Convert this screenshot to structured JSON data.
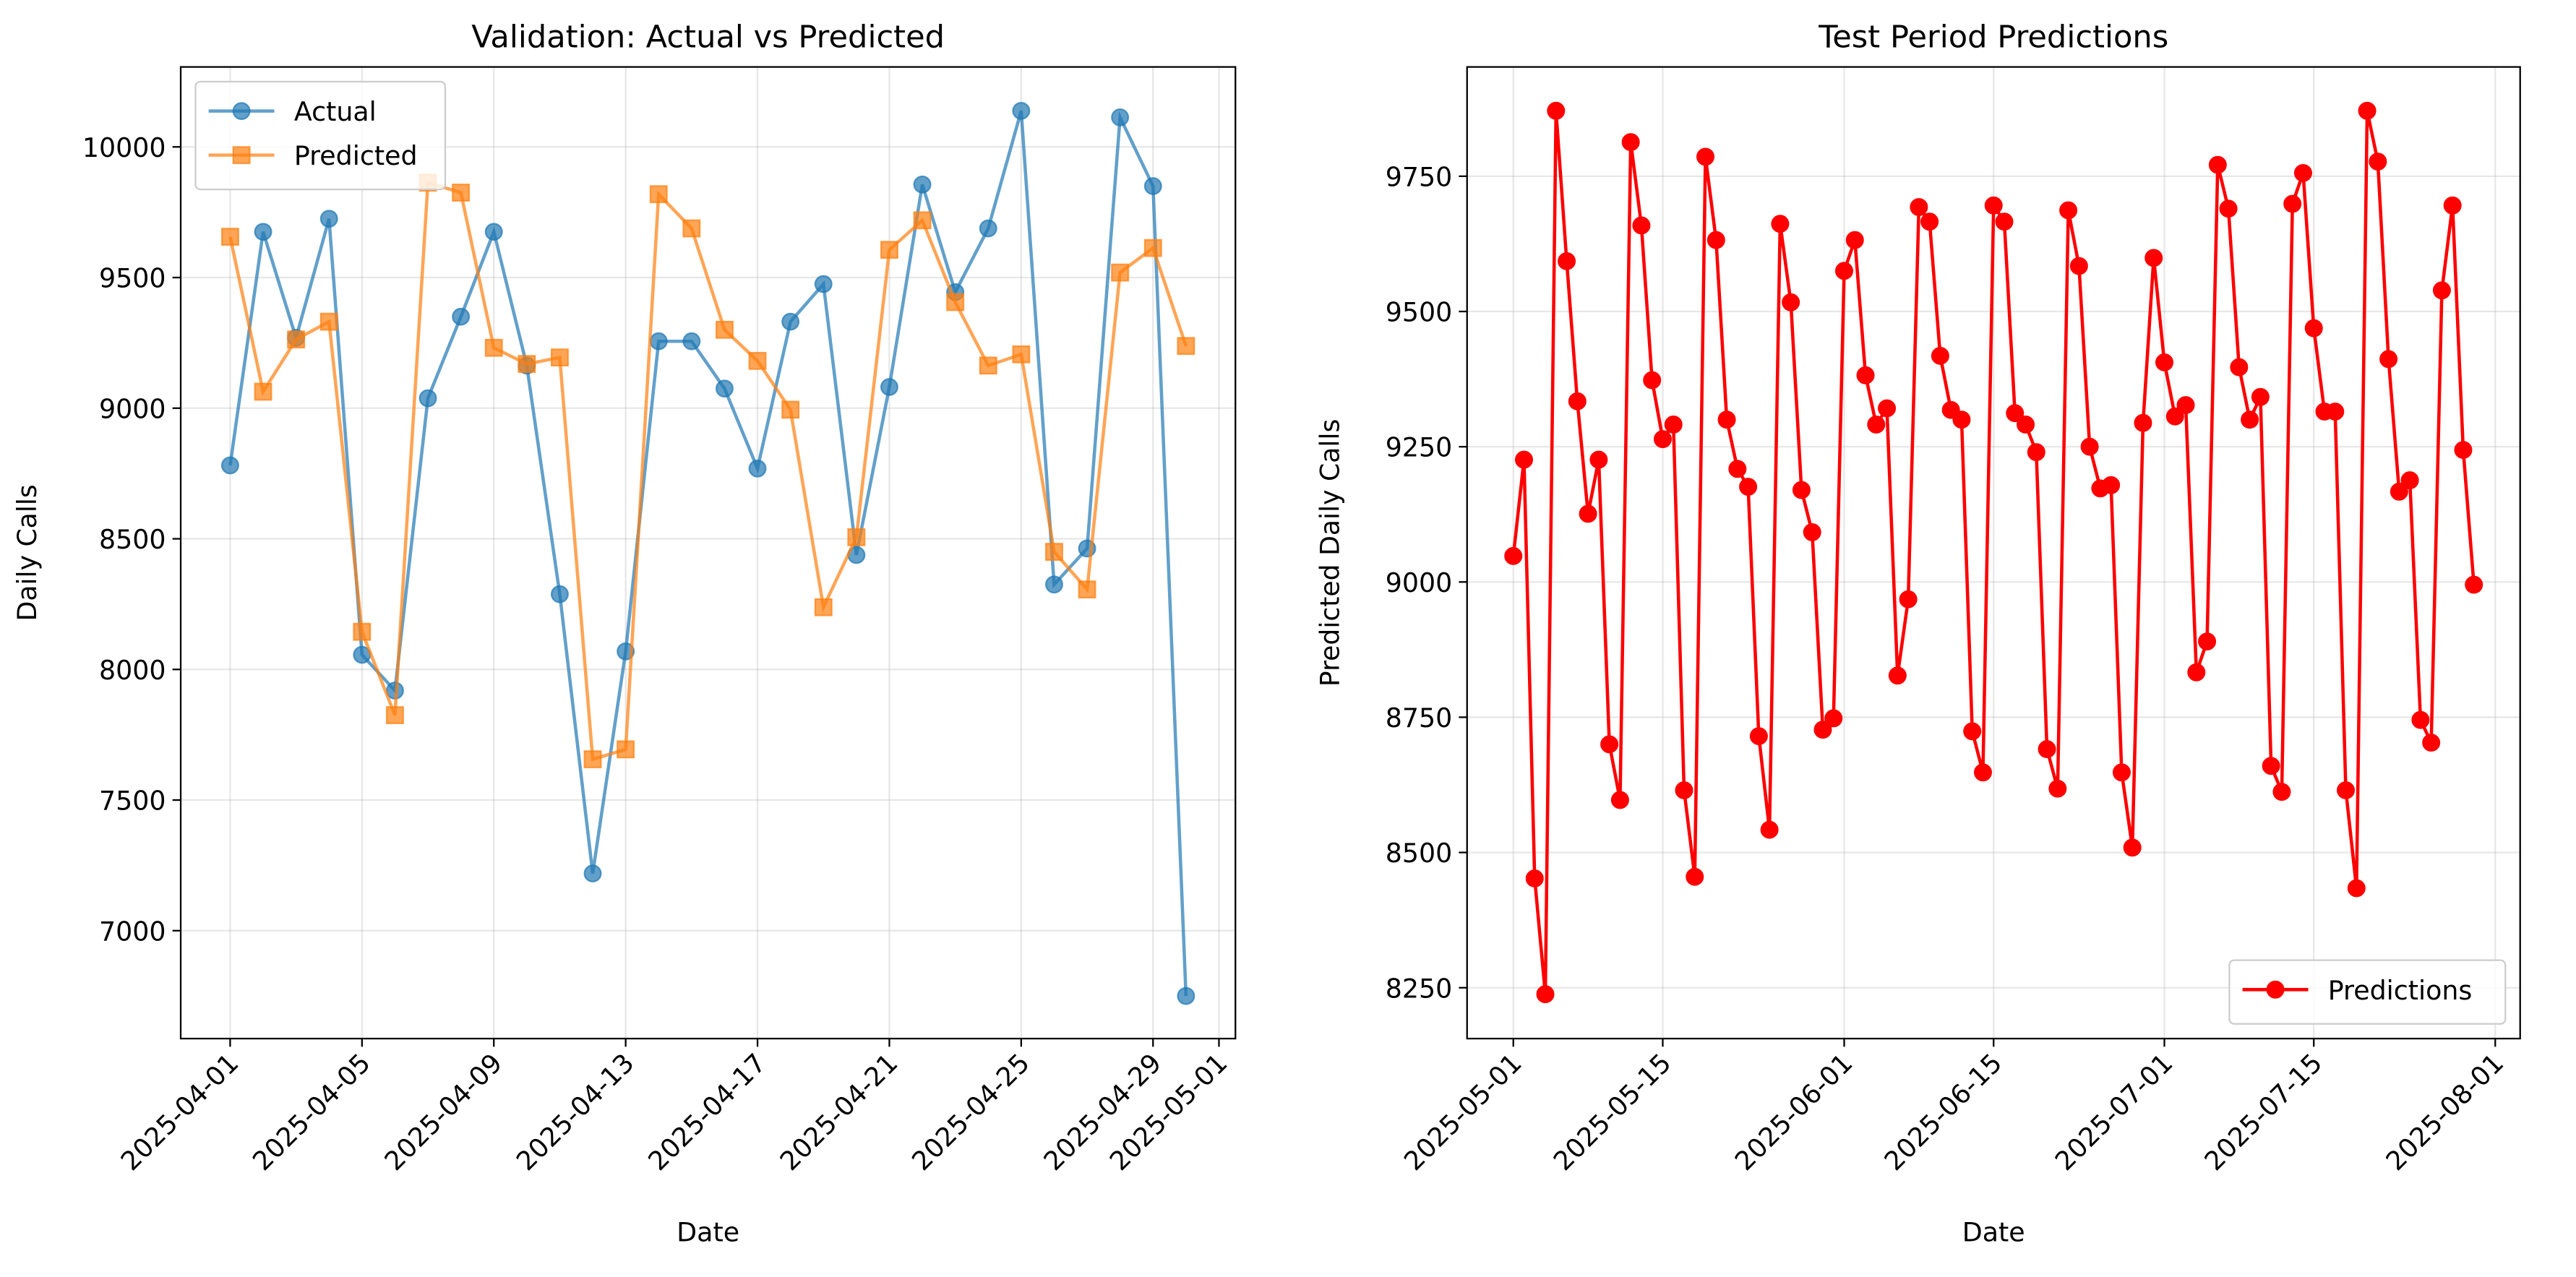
{
  "chart_data": [
    {
      "type": "line",
      "title": "Validation: Actual vs Predicted",
      "xlabel": "Date",
      "ylabel": "Daily Calls",
      "x": [
        "2025-04-01",
        "2025-04-02",
        "2025-04-03",
        "2025-04-04",
        "2025-04-05",
        "2025-04-06",
        "2025-04-07",
        "2025-04-08",
        "2025-04-09",
        "2025-04-10",
        "2025-04-11",
        "2025-04-12",
        "2025-04-13",
        "2025-04-14",
        "2025-04-15",
        "2025-04-16",
        "2025-04-17",
        "2025-04-18",
        "2025-04-19",
        "2025-04-20",
        "2025-04-21",
        "2025-04-22",
        "2025-04-23",
        "2025-04-24",
        "2025-04-25",
        "2025-04-26",
        "2025-04-27",
        "2025-04-28",
        "2025-04-29",
        "2025-04-30"
      ],
      "series": [
        {
          "name": "Actual",
          "color": "#1f77b4",
          "marker": "circle",
          "alpha": 0.7,
          "values": [
            8781,
            9675,
            9269,
            9725,
            8056,
            7919,
            9038,
            9350,
            9675,
            9163,
            8288,
            7219,
            8069,
            9256,
            9256,
            9075,
            8769,
            9331,
            9475,
            8438,
            9081,
            9856,
            9444,
            9688,
            10138,
            8325,
            8463,
            10113,
            9850,
            6750
          ]
        },
        {
          "name": "Predicted",
          "color": "#ff7f0e",
          "marker": "square",
          "alpha": 0.7,
          "values": [
            9656,
            9063,
            9263,
            9331,
            8144,
            7825,
            9863,
            9825,
            9231,
            9169,
            9194,
            7656,
            7694,
            9819,
            9688,
            9300,
            9181,
            8994,
            8238,
            8506,
            9606,
            9719,
            9406,
            9163,
            9206,
            8450,
            8306,
            9519,
            9613,
            9238
          ]
        }
      ],
      "xlim": [
        "2025-03-30T12:00",
        "2025-05-01T12:00"
      ],
      "xticks": [
        "2025-04-01",
        "2025-04-05",
        "2025-04-09",
        "2025-04-13",
        "2025-04-17",
        "2025-04-21",
        "2025-04-25",
        "2025-04-29",
        "2025-05-01"
      ],
      "ylim": [
        6587,
        10306
      ],
      "yticks": [
        7000,
        7500,
        8000,
        8500,
        9000,
        9500,
        10000
      ],
      "grid": true,
      "legend": "upper left"
    },
    {
      "type": "line",
      "title": "Test Period Predictions",
      "xlabel": "Date",
      "ylabel": "Predicted Daily Calls",
      "x": [
        "2025-05-01",
        "2025-05-02",
        "2025-05-03",
        "2025-05-04",
        "2025-05-05",
        "2025-05-06",
        "2025-05-07",
        "2025-05-08",
        "2025-05-09",
        "2025-05-10",
        "2025-05-11",
        "2025-05-12",
        "2025-05-13",
        "2025-05-14",
        "2025-05-15",
        "2025-05-16",
        "2025-05-17",
        "2025-05-18",
        "2025-05-19",
        "2025-05-20",
        "2025-05-21",
        "2025-05-22",
        "2025-05-23",
        "2025-05-24",
        "2025-05-25",
        "2025-05-26",
        "2025-05-27",
        "2025-05-28",
        "2025-05-29",
        "2025-05-30",
        "2025-05-31",
        "2025-06-01",
        "2025-06-02",
        "2025-06-03",
        "2025-06-04",
        "2025-06-05",
        "2025-06-06",
        "2025-06-07",
        "2025-06-08",
        "2025-06-09",
        "2025-06-10",
        "2025-06-11",
        "2025-06-12",
        "2025-06-13",
        "2025-06-14",
        "2025-06-15",
        "2025-06-16",
        "2025-06-17",
        "2025-06-18",
        "2025-06-19",
        "2025-06-20",
        "2025-06-21",
        "2025-06-22",
        "2025-06-23",
        "2025-06-24",
        "2025-06-25",
        "2025-06-26",
        "2025-06-27",
        "2025-06-28",
        "2025-06-29",
        "2025-06-30",
        "2025-07-01",
        "2025-07-02",
        "2025-07-03",
        "2025-07-04",
        "2025-07-05",
        "2025-07-06",
        "2025-07-07",
        "2025-07-08",
        "2025-07-09",
        "2025-07-10",
        "2025-07-11",
        "2025-07-12",
        "2025-07-13",
        "2025-07-14",
        "2025-07-15",
        "2025-07-16",
        "2025-07-17",
        "2025-07-18",
        "2025-07-19",
        "2025-07-20",
        "2025-07-21",
        "2025-07-22",
        "2025-07-23",
        "2025-07-24",
        "2025-07-25",
        "2025-07-26",
        "2025-07-27",
        "2025-07-28",
        "2025-07-29",
        "2025-07-30"
      ],
      "series": [
        {
          "name": "Predictions",
          "color": "#ff0000",
          "marker": "circle",
          "alpha": 1,
          "values": [
            9048,
            9226,
            8452,
            8238,
            9871,
            9593,
            9334,
            9126,
            9226,
            8700,
            8597,
            9813,
            9659,
            9373,
            9264,
            9291,
            8615,
            8455,
            9786,
            9632,
            9300,
            9209,
            9176,
            8715,
            8542,
            9662,
            9517,
            9170,
            9092,
            8727,
            8748,
            9575,
            9632,
            9382,
            9291,
            9321,
            8827,
            8968,
            9693,
            9666,
            9418,
            9318,
            9300,
            8724,
            8648,
            9696,
            9666,
            9312,
            9291,
            9240,
            8691,
            8618,
            9687,
            9584,
            9250,
            9173,
            9179,
            8648,
            8509,
            9294,
            9599,
            9406,
            9306,
            9327,
            8833,
            8890,
            9771,
            9690,
            9397,
            9300,
            9342,
            8660,
            8612,
            9699,
            9756,
            9469,
            9315,
            9315,
            8615,
            8434,
            9871,
            9777,
            9412,
            9167,
            9188,
            8745,
            8703,
            9539,
            9696,
            9244,
            8995
          ]
        }
      ],
      "xlim": [
        "2025-04-26T16:00",
        "2025-08-03T08:00"
      ],
      "xticks": [
        "2025-05-01",
        "2025-05-15",
        "2025-06-01",
        "2025-06-15",
        "2025-07-01",
        "2025-07-15",
        "2025-08-01"
      ],
      "ylim": [
        8156,
        9952
      ],
      "yticks": [
        8250,
        8500,
        8750,
        9000,
        9250,
        9500,
        9750
      ],
      "grid": true,
      "legend": "lower right"
    }
  ]
}
